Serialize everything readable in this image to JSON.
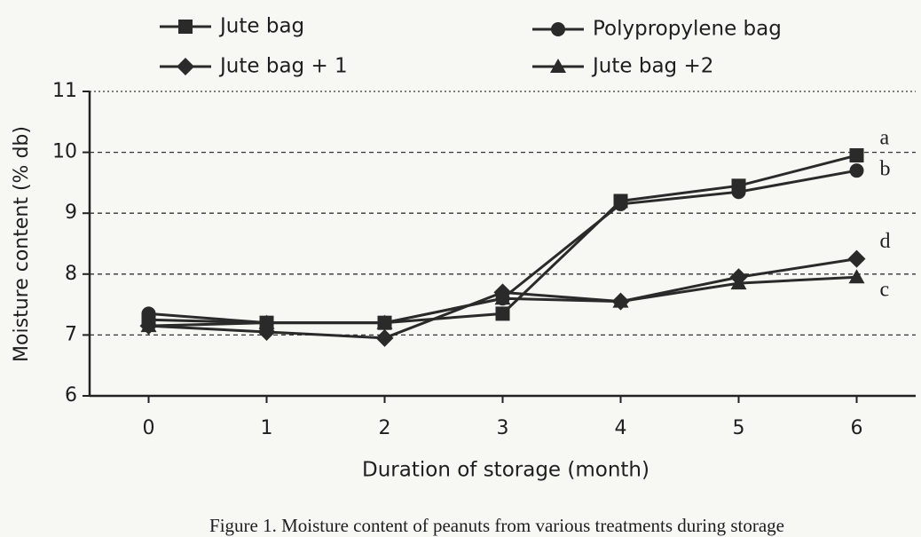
{
  "chart_data": {
    "type": "line",
    "y_label": "Moisture content (% db)",
    "x_label": "Duration of storage (month)",
    "caption": "Figure 1.  Moisture content of peanuts from various treatments during storage",
    "x": [
      0,
      1,
      2,
      3,
      4,
      5,
      6
    ],
    "xlim": [
      -0.5,
      6.5
    ],
    "xticks": [
      0,
      1,
      2,
      3,
      4,
      5,
      6
    ],
    "ylim": [
      6,
      11
    ],
    "yticks": [
      6,
      7,
      8,
      9,
      10,
      11
    ],
    "grid": true,
    "legend": "top",
    "series": [
      {
        "name": "Jute bag",
        "marker": "square",
        "color": "#2a2a2a",
        "annotation": "a",
        "values": [
          7.25,
          7.2,
          7.2,
          7.35,
          9.2,
          9.45,
          9.95
        ]
      },
      {
        "name": "Polypropylene bag",
        "marker": "circle",
        "color": "#2a2a2a",
        "annotation": "b",
        "values": [
          7.35,
          7.2,
          7.2,
          7.6,
          9.15,
          9.35,
          9.7
        ]
      },
      {
        "name": "Jute bag + 1",
        "marker": "diamond",
        "color": "#2a2a2a",
        "annotation": "d",
        "values": [
          7.15,
          7.05,
          6.95,
          7.7,
          7.55,
          7.95,
          8.25
        ]
      },
      {
        "name": "Jute bag +2",
        "marker": "triangle",
        "color": "#2a2a2a",
        "annotation": "c",
        "values": [
          7.15,
          7.2,
          7.2,
          7.6,
          7.55,
          7.85,
          7.95
        ]
      }
    ]
  }
}
